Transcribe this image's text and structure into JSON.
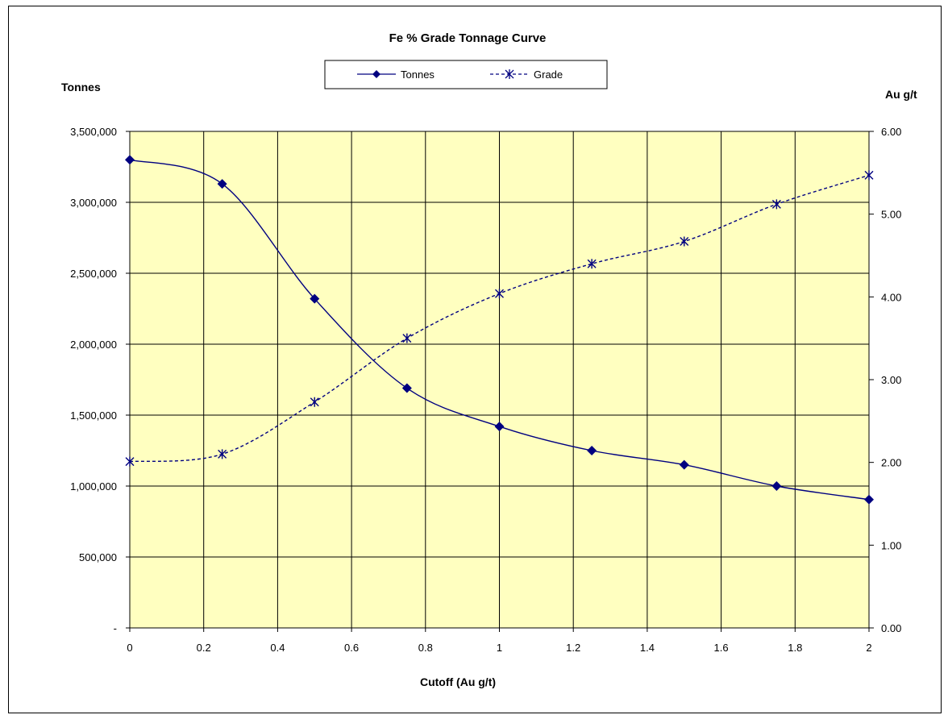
{
  "chart_data": {
    "type": "line",
    "title": "Fe % Grade Tonnage  Curve",
    "xlabel": "Cutoff (Au  g/t)",
    "ylabel_left": "Tonnes",
    "ylabel_right": "Au  g/t",
    "x": [
      0,
      0.25,
      0.5,
      0.75,
      1,
      1.25,
      1.5,
      1.75,
      2
    ],
    "xlim": [
      0,
      2
    ],
    "x_ticks": [
      "0",
      "0.2",
      "0.4",
      "0.6",
      "0.8",
      "1",
      "1.2",
      "1.4",
      "1.6",
      "1.8",
      "2"
    ],
    "ylim_left": [
      0,
      3500000
    ],
    "y_ticks_left": [
      "-",
      "500,000",
      "1,000,000",
      "1,500,000",
      "2,000,000",
      "2,500,000",
      "3,000,000",
      "3,500,000"
    ],
    "ylim_right": [
      0,
      6
    ],
    "y_ticks_right": [
      "0.00",
      "1.00",
      "2.00",
      "3.00",
      "4.00",
      "5.00",
      "6.00"
    ],
    "series": [
      {
        "name": "Tonnes",
        "axis": "left",
        "marker": "diamond",
        "line": "solid",
        "color": "#000080",
        "values": [
          3300000,
          3130000,
          2320000,
          1690000,
          1420000,
          1250000,
          1150000,
          1000000,
          905000
        ]
      },
      {
        "name": "Grade",
        "axis": "right",
        "marker": "asterisk",
        "line": "dashed",
        "color": "#000080",
        "values": [
          2.01,
          2.1,
          2.73,
          3.5,
          4.04,
          4.4,
          4.67,
          5.12,
          5.47
        ]
      }
    ],
    "grid": true,
    "legend": "top",
    "plot_background": "#ffffc0"
  }
}
